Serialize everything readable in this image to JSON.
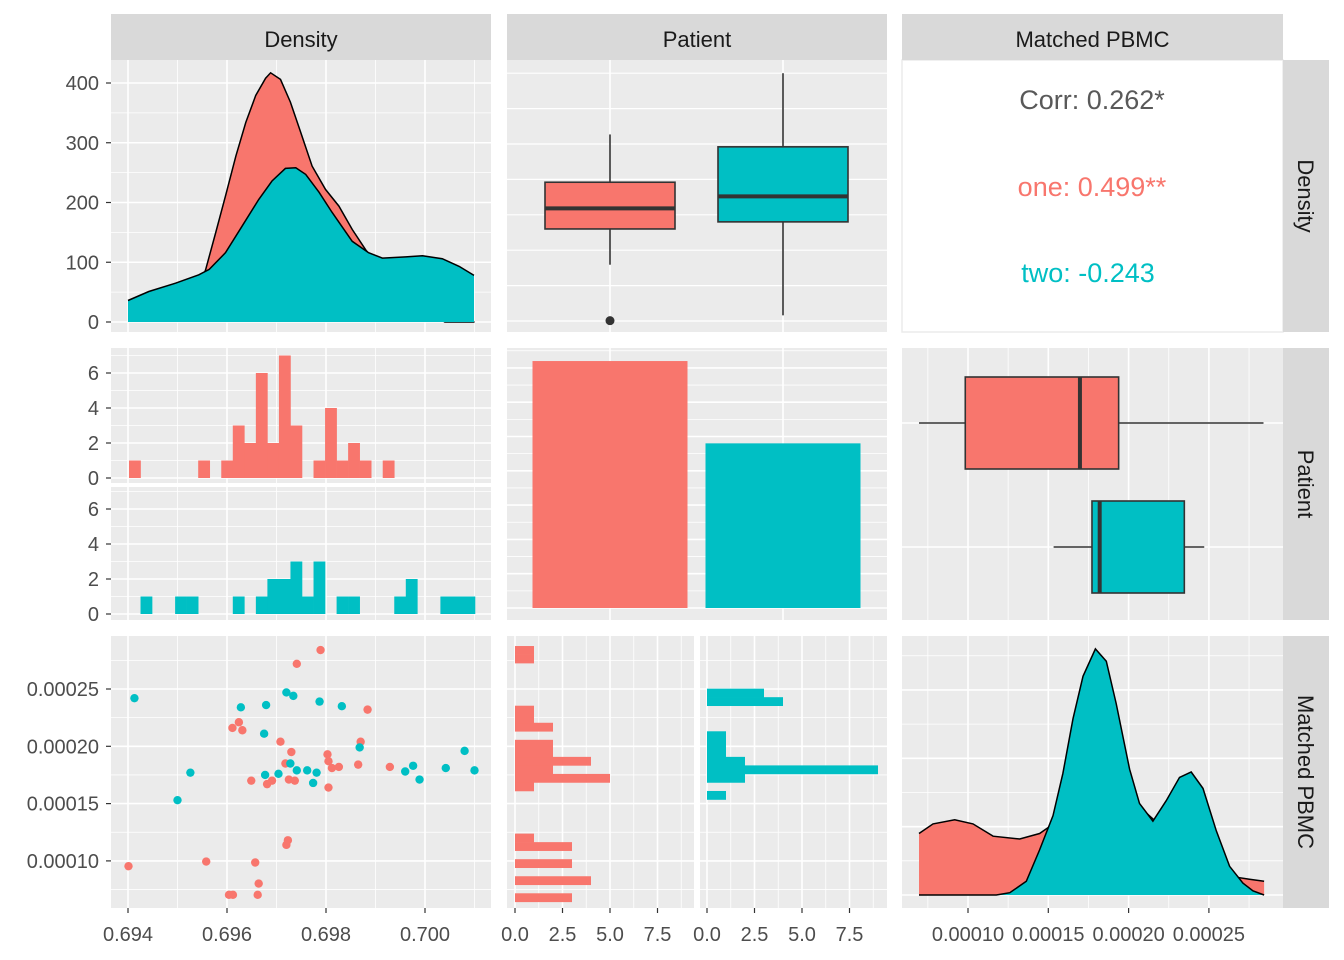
{
  "strips": {
    "top": [
      "Density",
      "Patient",
      "Matched PBMC"
    ],
    "right": [
      "Density",
      "Patient",
      "Matched PBMC"
    ]
  },
  "axes": {
    "row1_ticks": [
      "0",
      "100",
      "200",
      "300",
      "400"
    ],
    "row2_ticks": [
      "0",
      "2",
      "4",
      "6"
    ],
    "row3_ticks": [
      "0.00010",
      "0.00015",
      "0.00020",
      "0.00025"
    ],
    "col1_ticks": [
      "0.694",
      "0.696",
      "0.698",
      "0.700"
    ],
    "col2_ticks": [
      "0.0",
      "2.5",
      "5.0",
      "7.5"
    ],
    "col3_ticks": [
      "0.00010",
      "0.00015",
      "0.00020",
      "0.00025"
    ]
  },
  "correlation": {
    "overall": "Corr: 0.262*",
    "one": "one: 0.499**",
    "two": "two: -0.243"
  },
  "colors": {
    "one": "#F8766D",
    "two": "#00BFC4",
    "corr_overall": "#595959"
  },
  "chart_data": [
    {
      "panel": "Density x Density",
      "type": "area",
      "series": [
        {
          "group": "one",
          "x": [
            0.69401,
            0.695,
            0.69545,
            0.69557,
            0.69577,
            0.69597,
            0.69618,
            0.69638,
            0.69658,
            0.69678,
            0.69688,
            0.69708,
            0.69728,
            0.69749,
            0.69772,
            0.69799,
            0.69826,
            0.69853,
            0.6988,
            0.6992,
            0.6996,
            0.7003,
            0.7004,
            0.701
          ],
          "y": [
            8,
            20,
            60,
            88,
            149,
            211,
            278,
            334,
            379,
            408,
            417,
            406,
            368,
            317,
            261,
            222,
            194,
            155,
            121,
            80,
            40,
            5,
            0,
            0
          ]
        },
        {
          "group": "two",
          "x": [
            0.694,
            0.69442,
            0.69496,
            0.69543,
            0.69564,
            0.69597,
            0.69631,
            0.69664,
            0.69691,
            0.69718,
            0.69739,
            0.69759,
            0.69786,
            0.69812,
            0.69853,
            0.69886,
            0.69914,
            0.69961,
            0.69995,
            0.70035,
            0.70069,
            0.70099
          ],
          "y": [
            36,
            51,
            65,
            79,
            88,
            116,
            161,
            205,
            236,
            257,
            258,
            247,
            217,
            184,
            135,
            116,
            107,
            109,
            111,
            106,
            93,
            78
          ]
        }
      ],
      "ylim": [
        0,
        430
      ]
    },
    {
      "panel": "Density by Patient",
      "type": "boxplot",
      "boxes": [
        {
          "group": "one",
          "min": 0.69559,
          "q1": 0.6966,
          "median": 0.69718,
          "q3": 0.69792,
          "max": 0.69927,
          "outliers": [
            0.69401
          ]
        },
        {
          "group": "two",
          "min": 0.69416,
          "q1": 0.6968,
          "median": 0.69752,
          "q3": 0.69892,
          "max": 0.701,
          "outliers": []
        }
      ]
    },
    {
      "panel": "Density histogram by Patient",
      "type": "bar",
      "bins": 30,
      "x_range": [
        0.69402,
        0.70101
      ],
      "series": [
        {
          "group": "one",
          "counts": [
            1,
            0,
            0,
            0,
            0,
            0,
            1,
            0,
            1,
            3,
            2,
            6,
            2,
            7,
            3,
            0,
            1,
            4,
            1,
            2,
            1,
            0,
            1,
            0,
            0,
            0,
            0,
            0,
            0,
            0
          ]
        },
        {
          "group": "two",
          "counts": [
            0,
            1,
            0,
            0,
            1,
            1,
            0,
            0,
            0,
            1,
            0,
            1,
            2,
            2,
            3,
            1,
            3,
            0,
            1,
            1,
            0,
            0,
            0,
            1,
            2,
            0,
            0,
            1,
            1,
            1
          ]
        }
      ]
    },
    {
      "panel": "Patient counts",
      "type": "bar",
      "categories": [
        "one",
        "two"
      ],
      "values": [
        36,
        24
      ]
    },
    {
      "panel": "Matched PBMC by Patient",
      "type": "boxplot",
      "boxes": [
        {
          "group": "one",
          "min": 6.95e-05,
          "q1": 9.83e-05,
          "median": 0.0001697,
          "q3": 0.0001938,
          "max": 0.000284
        },
        {
          "group": "two",
          "min": 0.0001533,
          "q1": 0.0001772,
          "median": 0.000182,
          "q3": 0.0002347,
          "max": 0.0002471
        }
      ]
    },
    {
      "panel": "Density vs Matched PBMC",
      "type": "scatter",
      "series": [
        {
          "group": "one",
          "points": [
            [
              0.69789,
              0.000284
            ],
            [
              0.69741,
              0.000272
            ],
            [
              0.69884,
              0.000232
            ],
            [
              0.69624,
              0.000221
            ],
            [
              0.69611,
              0.000216
            ],
            [
              0.69631,
              0.000214
            ],
            [
              0.69708,
              0.000204
            ],
            [
              0.6987,
              0.000204
            ],
            [
              0.6973,
              0.000195
            ],
            [
              0.69803,
              0.000193
            ],
            [
              0.69805,
              0.000187
            ],
            [
              0.69718,
              0.000185
            ],
            [
              0.69812,
              0.000181
            ],
            [
              0.69826,
              0.000182
            ],
            [
              0.69865,
              0.000184
            ],
            [
              0.69929,
              0.000182
            ],
            [
              0.69649,
              0.00017
            ],
            [
              0.69681,
              0.000167
            ],
            [
              0.69691,
              0.00017
            ],
            [
              0.69725,
              0.000171
            ],
            [
              0.69737,
              0.00017
            ],
            [
              0.69805,
              0.000164
            ],
            [
              0.69723,
              0.000118
            ],
            [
              0.6972,
              0.000114
            ],
            [
              0.69401,
              9.54e-05
            ],
            [
              0.69558,
              9.94e-05
            ],
            [
              0.69657,
              9.86e-05
            ],
            [
              0.69664,
              8.02e-05
            ],
            [
              0.69604,
              7.04e-05
            ],
            [
              0.69612,
              7.04e-05
            ],
            [
              0.69662,
              7.04e-05
            ]
          ]
        },
        {
          "group": "two",
          "points": [
            [
              0.69413,
              0.000242
            ],
            [
              0.6972,
              0.000247
            ],
            [
              0.69734,
              0.000244
            ],
            [
              0.69628,
              0.000234
            ],
            [
              0.69679,
              0.000236
            ],
            [
              0.69787,
              0.000239
            ],
            [
              0.69832,
              0.000235
            ],
            [
              0.69675,
              0.000211
            ],
            [
              0.69868,
              0.000199
            ],
            [
              0.69728,
              0.000185
            ],
            [
              0.69741,
              0.000179
            ],
            [
              0.69762,
              0.000179
            ],
            [
              0.69781,
              0.000177
            ],
            [
              0.69677,
              0.000175
            ],
            [
              0.69704,
              0.000176
            ],
            [
              0.69774,
              0.000168
            ],
            [
              0.695,
              0.000153
            ],
            [
              0.69526,
              0.000177
            ],
            [
              0.6996,
              0.000178
            ],
            [
              0.69976,
              0.000183
            ],
            [
              0.69989,
              0.000171
            ],
            [
              0.70042,
              0.000181
            ],
            [
              0.7008,
              0.000196
            ],
            [
              0.701,
              0.000179
            ]
          ]
        }
      ]
    },
    {
      "panel": "Matched PBMC histogram by Patient",
      "type": "bar",
      "orientation": "horizontal",
      "bins": 30,
      "y_range": [
        6.43e-05,
        0.0002875
      ],
      "series": [
        {
          "group": "one",
          "counts": [
            3,
            0,
            4,
            0,
            3,
            0,
            3,
            1,
            0,
            0,
            0,
            0,
            0,
            1,
            5,
            2,
            4,
            2,
            2,
            0,
            2,
            1,
            1,
            0,
            0,
            0,
            0,
            0,
            1,
            1
          ]
        },
        {
          "group": "two",
          "counts": [
            0,
            0,
            0,
            0,
            0,
            0,
            0,
            0,
            0,
            0,
            0,
            0,
            1,
            0,
            2,
            9,
            2,
            1,
            1,
            1,
            0,
            0,
            0,
            4,
            3,
            0,
            0,
            0,
            0,
            0
          ]
        }
      ]
    },
    {
      "panel": "Matched PBMC density",
      "type": "area",
      "series": [
        {
          "group": "one",
          "x": [
            6.95e-05,
            7.82e-05,
            9.17e-05,
            0.0001031,
            0.0001156,
            0.0001322,
            0.0001446,
            0.0001519,
            0.00017,
            0.0002,
            0.000211,
            0.00023,
            0.00025,
            0.000267,
            0.0002753,
            0.0002844
          ],
          "y": [
            4500,
            5200,
            5500,
            5200,
            4300,
            4100,
            4500,
            5100,
            5500,
            5000,
            6000,
            4000,
            2000,
            1300,
            1150,
            1000
          ]
        },
        {
          "group": "two",
          "x": [
            6.95e-05,
            0.0001176,
            0.000126,
            0.0001363,
            0.0001446,
            0.0001529,
            0.0001591,
            0.0001654,
            0.0001716,
            0.0001793,
            0.0001861,
            0.0001923,
            0.0002006,
            0.0002068,
            0.0002151,
            0.0002234,
            0.0002317,
            0.000239,
            0.0002463,
            0.0002546,
            0.0002629,
            0.0002712,
            0.0002774,
            0.0002844
          ],
          "y": [
            0,
            0,
            170,
            1000,
            3300,
            5800,
            8900,
            12900,
            16000,
            18000,
            17100,
            14000,
            9200,
            6700,
            5400,
            6900,
            8600,
            9000,
            7800,
            4700,
            2100,
            870,
            310,
            0
          ]
        }
      ]
    }
  ]
}
